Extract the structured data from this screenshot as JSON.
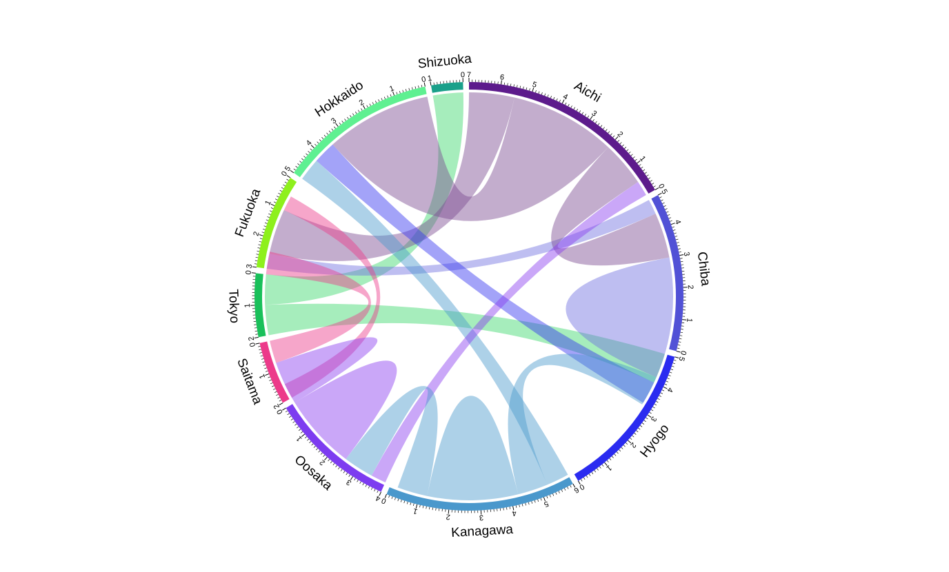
{
  "chart_data": {
    "type": "chord",
    "title": "",
    "sectors": [
      {
        "name": "Tokyo",
        "total": 2,
        "color": "#19c05a"
      },
      {
        "name": "Fukuoka",
        "total": 3,
        "color": "#8ef01d"
      },
      {
        "name": "Hokkaido",
        "total": 5,
        "color": "#5ff091"
      },
      {
        "name": "Shizuoka",
        "total": 1,
        "color": "#1aa08a"
      },
      {
        "name": "Aichi",
        "total": 7,
        "color": "#5d1b8c"
      },
      {
        "name": "Chiba",
        "total": 5,
        "color": "#5151d6"
      },
      {
        "name": "Hyogo",
        "total": 5,
        "color": "#2a2bf0"
      },
      {
        "name": "Kanagawa",
        "total": 6,
        "color": "#4a98cc"
      },
      {
        "name": "Oosaka",
        "total": 4,
        "color": "#7d3cf0"
      },
      {
        "name": "Saitama",
        "total": 2,
        "color": "#ec3a8a"
      }
    ],
    "links": [
      {
        "from": "Tokyo",
        "to": "Hyogo",
        "value": 1,
        "color": "#3ad66a"
      },
      {
        "from": "Tokyo",
        "to": "Shizuoka",
        "value": 1,
        "color": "#3ad66a"
      },
      {
        "from": "Fukuoka",
        "to": "Chiba",
        "value": 0.5,
        "color": "#6e6ee0"
      },
      {
        "from": "Fukuoka",
        "to": "Aichi",
        "value": 1.5,
        "color": "#7a4a90"
      },
      {
        "from": "Fukuoka",
        "to": "Saitama",
        "value": 0.5,
        "color": "#ec3a8a"
      },
      {
        "from": "Hokkaido",
        "to": "Kanagawa",
        "value": 0.75,
        "color": "#4a98cc"
      },
      {
        "from": "Hokkaido",
        "to": "Hyogo",
        "value": 0.75,
        "color": "#3333f0"
      },
      {
        "from": "Hokkaido",
        "to": "Aichi",
        "value": 3.5,
        "color": "#7a4a90"
      },
      {
        "from": "Aichi",
        "to": "Chiba",
        "value": 1.5,
        "color": "#7a4a90"
      },
      {
        "from": "Aichi",
        "to": "Oosaka",
        "value": 0.5,
        "color": "#8a3cf0"
      },
      {
        "from": "Chiba",
        "to": "Chiba",
        "value": 2,
        "color": "#6e6ee0"
      },
      {
        "from": "Chiba",
        "to": "Kanagawa",
        "value": 1,
        "color": "#4a98cc"
      },
      {
        "from": "Kanagawa",
        "to": "Kanagawa",
        "value": 1.5,
        "color": "#4a98cc"
      },
      {
        "from": "Kanagawa",
        "to": "Oosaka",
        "value": 1,
        "color": "#4a98cc"
      },
      {
        "from": "Oosaka",
        "to": "Oosaka",
        "value": 1.25,
        "color": "#8a3cf0"
      },
      {
        "from": "Oosaka",
        "to": "Saitama",
        "value": 0.75,
        "color": "#8a3cf0"
      },
      {
        "from": "Saitama",
        "to": "Tokyo",
        "value": 0.75,
        "color": "#ec3a8a"
      }
    ]
  }
}
